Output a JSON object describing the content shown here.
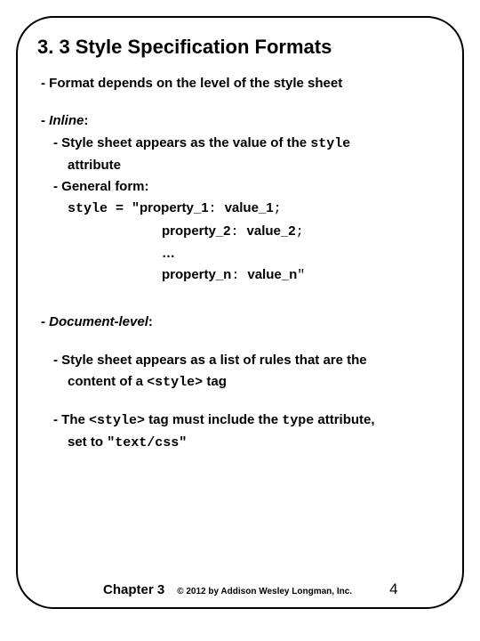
{
  "title": "3. 3 Style Specification Formats",
  "lines": {
    "l1": "- Format depends on the level of the style sheet",
    "inline_hdr_dash": "- ",
    "inline_hdr": "Inline",
    "colon": ":",
    "inline1a": "- Style sheet appears as the value of the ",
    "inline1b": "style",
    "inline2": "attribute",
    "genform": "- General form:",
    "code1a": "style = \"",
    "code1b": "property_1",
    "code1c": ": ",
    "code1d": "value_1",
    "code1e": ";",
    "code2a": "property_2",
    "code2b": ": ",
    "code2c": "value_2",
    "code2d": ";",
    "ellipsis": "…",
    "code3a": "property_n",
    "code3b": ": ",
    "code3c": "value_n",
    "code3d": "\"",
    "doc_hdr_dash": "- ",
    "doc_hdr": "Document-level",
    "doc1a": "- Style sheet appears as a list of rules that are the",
    "doc1b": "content of a ",
    "doc1c": "<style>",
    "doc1d": " tag",
    "doc2a": "- The ",
    "doc2b": "<style>",
    "doc2c": " tag must include the ",
    "doc2d": "type",
    "doc2e": " attribute,",
    "doc3a": "set to ",
    "doc3b": "\"text/css\""
  },
  "footer": {
    "chapter": "Chapter 3",
    "copyright": "© 2012 by Addison Wesley Longman, Inc.",
    "page": "4"
  },
  "colors": {
    "text": "#000000",
    "background": "#ffffff",
    "border": "#000000"
  }
}
